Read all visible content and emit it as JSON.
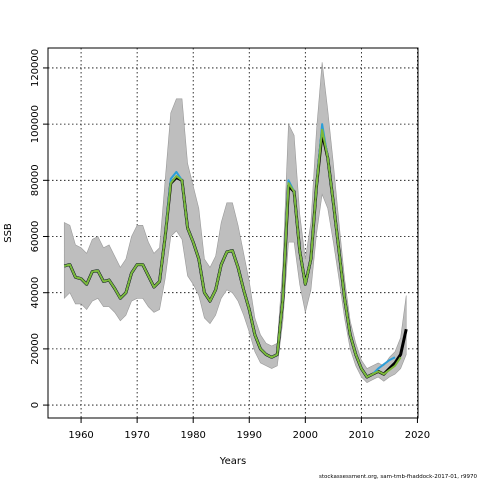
{
  "chart_data": {
    "type": "line",
    "xlabel": "Years",
    "ylabel": "SSB",
    "footer": "stockassessment.org, sam-tmb-fhaddock-2017-01, r9970",
    "x": [
      1957,
      1958,
      1959,
      1960,
      1961,
      1962,
      1963,
      1964,
      1965,
      1966,
      1967,
      1968,
      1969,
      1970,
      1971,
      1972,
      1973,
      1974,
      1975,
      1976,
      1977,
      1978,
      1979,
      1980,
      1981,
      1982,
      1983,
      1984,
      1985,
      1986,
      1987,
      1988,
      1989,
      1990,
      1991,
      1992,
      1993,
      1994,
      1995,
      1996,
      1997,
      1998,
      1999,
      2000,
      2001,
      2002,
      2003,
      2004,
      2005,
      2006,
      2007,
      2008,
      2009,
      2010,
      2011,
      2012,
      2013,
      2014,
      2015,
      2016,
      2017,
      2018
    ],
    "band_color": "#bebebe",
    "band_upper": [
      65000,
      64000,
      57000,
      56000,
      54000,
      59000,
      60000,
      56000,
      57000,
      53000,
      49000,
      52000,
      60000,
      64000,
      64000,
      58000,
      54000,
      56000,
      80000,
      104000,
      109000,
      109000,
      86000,
      78000,
      70000,
      52000,
      49000,
      53000,
      65000,
      72000,
      72000,
      64000,
      54000,
      44000,
      31000,
      25000,
      22000,
      21000,
      22000,
      50000,
      100000,
      96000,
      68000,
      52000,
      65000,
      98000,
      122000,
      105000,
      86000,
      65000,
      45000,
      30000,
      22000,
      16000,
      13000,
      14000,
      15000,
      14000,
      17000,
      19000,
      24000,
      39000
    ],
    "band_lower": [
      38000,
      40000,
      36000,
      36000,
      34000,
      37000,
      38000,
      35000,
      35000,
      33000,
      30000,
      32000,
      37000,
      38000,
      38000,
      35000,
      33000,
      34000,
      45000,
      60000,
      62000,
      59000,
      46000,
      43000,
      39000,
      31000,
      29000,
      32000,
      38000,
      41000,
      40000,
      37000,
      32000,
      26000,
      19000,
      15000,
      14000,
      13000,
      14000,
      30000,
      58000,
      58000,
      43000,
      33000,
      41000,
      61000,
      75000,
      70000,
      58000,
      45000,
      31000,
      20000,
      14000,
      10000,
      8000,
      9000,
      10000,
      8500,
      10000,
      11000,
      13000,
      18000
    ],
    "series": [
      {
        "color": "#000000",
        "values": [
          49500,
          50000,
          45500,
          45000,
          43000,
          47500,
          47800,
          44000,
          44500,
          41500,
          38000,
          40000,
          47000,
          50000,
          50000,
          46000,
          42000,
          44000,
          60000,
          79000,
          81000,
          80000,
          63000,
          58000,
          52000,
          40000,
          37000,
          41000,
          50000,
          54500,
          55000,
          49000,
          41000,
          34000,
          25000,
          20000,
          18000,
          17000,
          18000,
          38000,
          78000,
          76000,
          55000,
          43000,
          52000,
          78000,
          97000,
          88000,
          72000,
          55000,
          38000,
          25000,
          18000,
          13000,
          10000,
          11000,
          12000,
          11000,
          13000,
          15000,
          18000,
          27000
        ]
      },
      {
        "color": "#2a9ed8",
        "values": [
          49500,
          50000,
          45500,
          45000,
          43000,
          47500,
          47800,
          44000,
          44500,
          41500,
          38000,
          40000,
          47000,
          50000,
          50000,
          46000,
          42000,
          44000,
          60000,
          80500,
          83000,
          80000,
          63000,
          58000,
          52000,
          40000,
          37000,
          41000,
          50000,
          54500,
          55000,
          49000,
          41000,
          34000,
          25000,
          20000,
          18000,
          17000,
          18000,
          38000,
          80000,
          76000,
          55000,
          43000,
          52000,
          78000,
          100000,
          88000,
          72000,
          55000,
          38000,
          25000,
          18000,
          13000,
          10000,
          11000,
          13000,
          14500,
          16000,
          17000,
          null,
          null
        ]
      },
      {
        "color": "#7db83a",
        "values": [
          49500,
          50000,
          45500,
          45000,
          43000,
          47500,
          47800,
          44000,
          44500,
          41500,
          38000,
          40000,
          47000,
          50000,
          50000,
          46000,
          42000,
          44000,
          60000,
          79000,
          81500,
          80000,
          63000,
          58000,
          52000,
          40000,
          37000,
          41000,
          50000,
          54500,
          55000,
          49000,
          41000,
          34000,
          25000,
          20000,
          18000,
          17000,
          18000,
          38000,
          79000,
          76000,
          55000,
          43000,
          52000,
          78000,
          98000,
          88000,
          72000,
          55000,
          38000,
          25000,
          18000,
          13000,
          10000,
          11000,
          12000,
          11000,
          12500,
          14000,
          17000,
          null
        ]
      }
    ],
    "xlim": [
      1954.1,
      2020.1
    ],
    "ylim": [
      -4600,
      127100
    ],
    "xticks": [
      1960,
      1970,
      1980,
      1990,
      2000,
      2010,
      2020
    ],
    "yticks": [
      0,
      20000,
      40000,
      60000,
      80000,
      100000,
      120000
    ],
    "grid": true
  }
}
